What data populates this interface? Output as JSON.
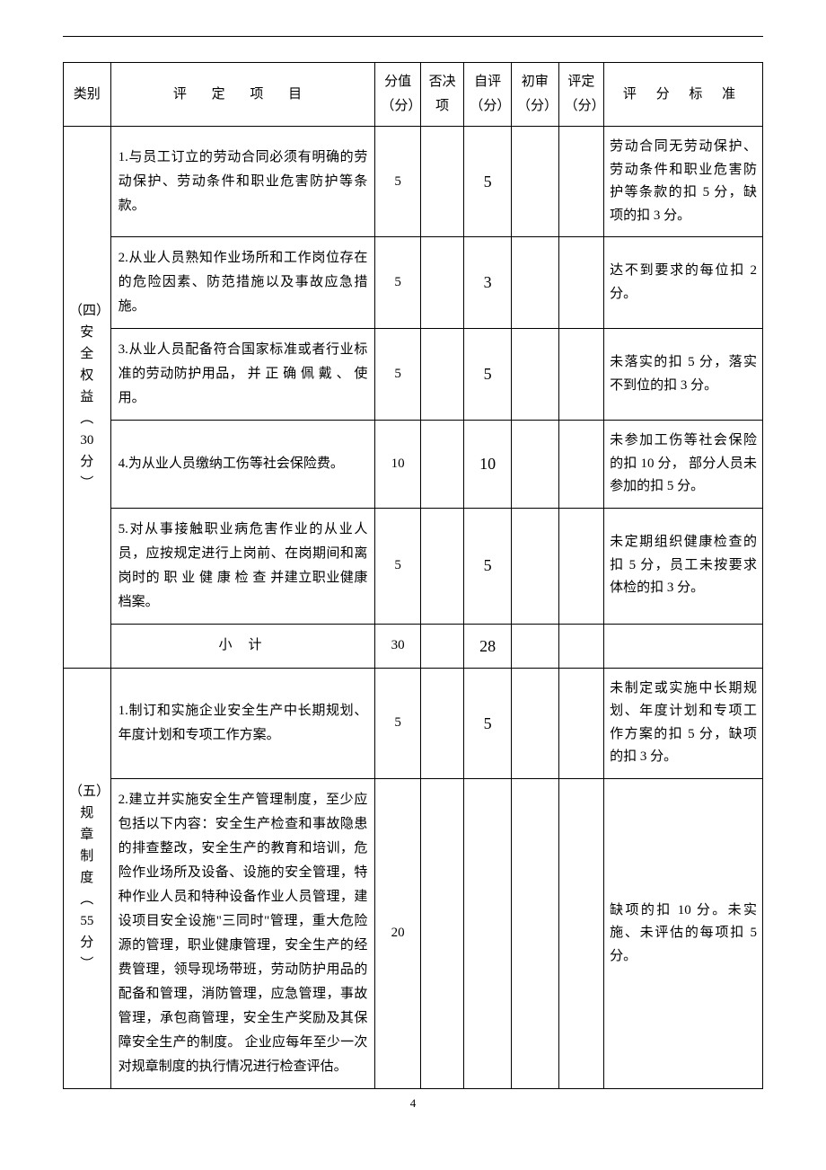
{
  "header": {
    "category": "类别",
    "item": "评 定 项 目",
    "score": "分值（分）",
    "veto": "否决项",
    "self": "自评（分）",
    "first": "初审（分）",
    "final": "评定（分）",
    "standard": "评 分 标 准"
  },
  "section4": {
    "label_lines": [
      "（四）",
      "安",
      "全",
      "权",
      "益",
      "︵",
      "30",
      "分",
      "︶"
    ],
    "rows": [
      {
        "item": "1.与员工订立的劳动合同必须有明确的劳动保护、劳动条件和职业危害防护等条款。",
        "score": "5",
        "self": "5",
        "standard": "劳动合同无劳动保护、劳动条件和职业危害防护等条款的扣 5 分，缺项的扣 3 分。"
      },
      {
        "item": "2.从业人员熟知作业场所和工作岗位存在的危险因素、防范措施以及事故应急措施。",
        "score": "5",
        "self": "3",
        "standard": "达不到要求的每位扣 2 分。"
      },
      {
        "item": "3.从业人员配备符合国家标准或者行业标准的劳动防护用品， 并 正 确 佩 戴 、 使用。",
        "score": "5",
        "self": "5",
        "standard": "未落实的扣 5 分，落实不到位的扣 3 分。"
      },
      {
        "item": "4.为从业人员缴纳工伤等社会保险费。",
        "score": "10",
        "self": "10",
        "standard": "未参加工伤等社会保险的扣 10 分， 部分人员未参加的扣 5 分。"
      },
      {
        "item": "5.对从事接触职业病危害作业的从业人员，应按规定进行上岗前、在岗期间和离岗时的 职 业 健 康 检 查 并建立职业健康档案。",
        "score": "5",
        "self": "5",
        "standard": "未定期组织健康检查的扣 5 分，员工未按要求体检的扣 3 分。"
      }
    ],
    "subtotal": {
      "label": "小计",
      "score": "30",
      "self": "28"
    }
  },
  "section5": {
    "label_lines": [
      "（五）",
      "规",
      "章",
      "制",
      "度",
      "︵",
      "55",
      "分",
      "︶"
    ],
    "rows": [
      {
        "item": "1.制订和实施企业安全生产中长期规划、年度计划和专项工作方案。",
        "score": "5",
        "self": "5",
        "standard": "未制定或实施中长期规划、年度计划和专项工作方案的扣 5 分，缺项的扣 3 分。"
      },
      {
        "item": "2.建立并实施安全生产管理制度，至少应包括以下内容：安全生产检查和事故隐患的排查整改，安全生产的教育和培训，危险作业场所及设备、设施的安全管理，特种作业人员和特种设备作业人员管理，建设项目安全设施\"三同时\"管理，重大危险源的管理，职业健康管理，安全生产的经费管理，领导现场带班，劳动防护用品的配备和管理，消防管理，应急管理，事故管理，承包商管理，安全生产奖励及其保障安全生产的制度。\n企业应每年至少一次对规章制度的执行情况进行检查评估。",
        "score": "20",
        "self": "",
        "standard": "缺项的扣 10 分。未实施、未评估的每项扣 5 分。"
      }
    ]
  },
  "page_number": "4"
}
